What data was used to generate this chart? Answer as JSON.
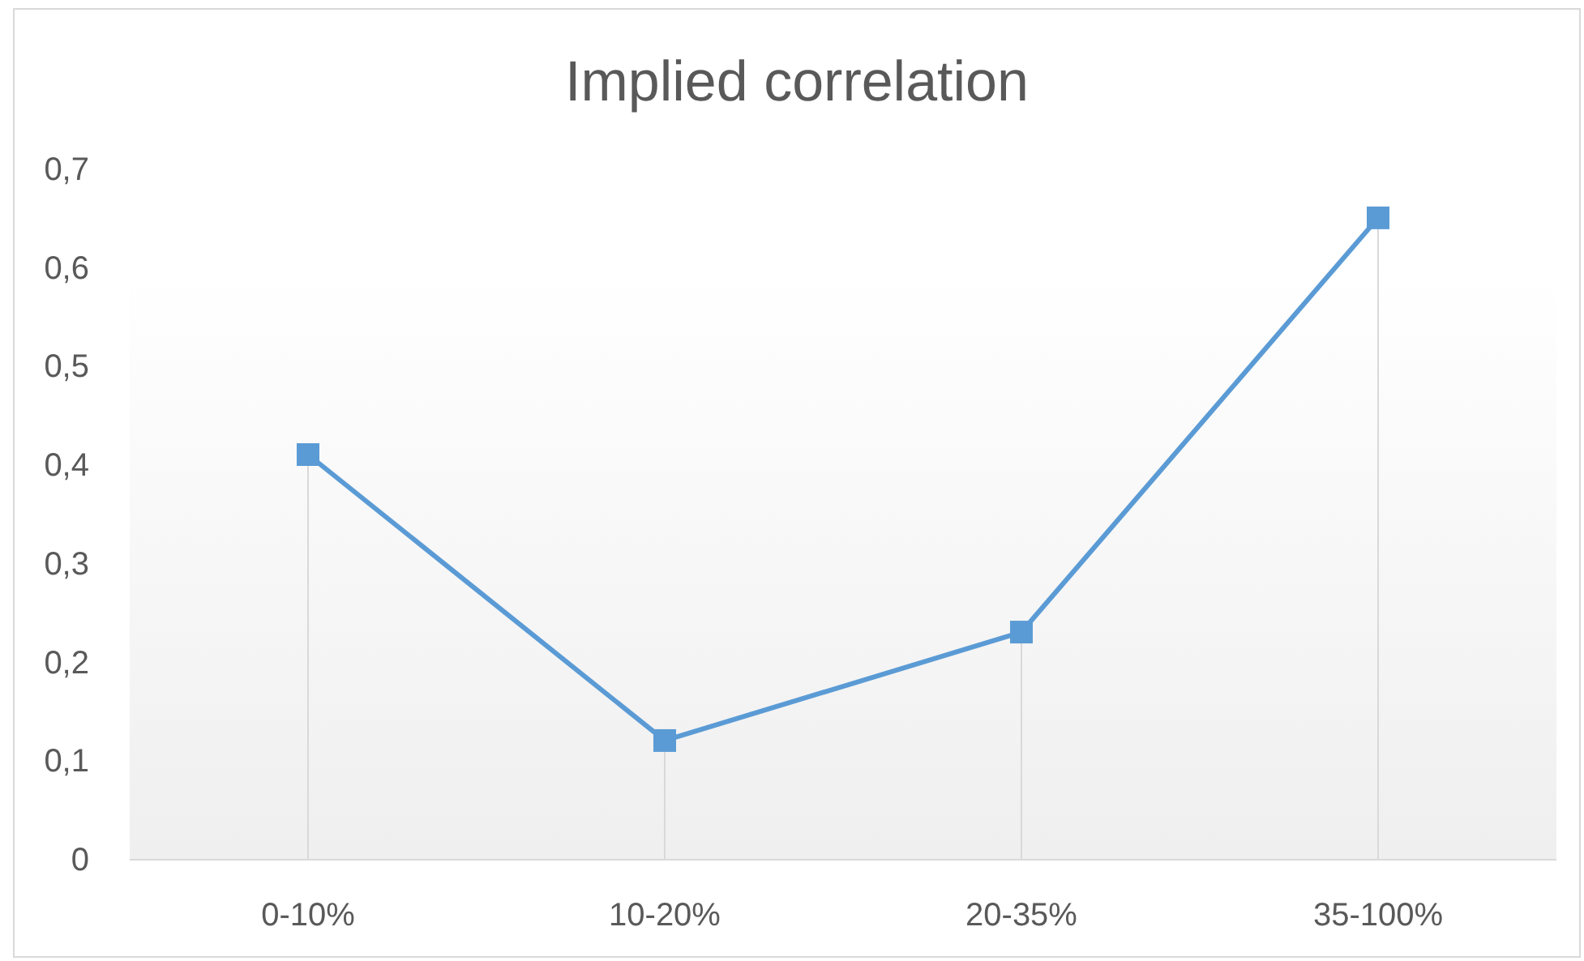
{
  "chart_data": {
    "type": "line",
    "title": "Implied correlation",
    "categories": [
      "0-10%",
      "10-20%",
      "20-35%",
      "35-100%"
    ],
    "series": [
      {
        "color": "#5b9bd5",
        "values": [
          0.41,
          0.12,
          0.23,
          0.65
        ]
      },
      {
        "type": "lollipop",
        "color": "#5b9bd5",
        "marker": "square",
        "values": [
          0.41,
          0.12,
          0.23,
          0.65
        ]
      }
    ],
    "ylim": [
      0,
      0.7
    ],
    "yticks": [
      0,
      {
        "value": 0.1,
        "label": "0,1"
      },
      {
        "value": 0.2,
        "label": "0,2"
      },
      {
        "value": 0.3,
        "label": "0,3"
      },
      {
        "value": 0.4,
        "label": "0,4"
      },
      {
        "value": 0.5,
        "label": "0,5"
      },
      {
        "value": 0.6,
        "label": "0,6"
      },
      {
        "value": 0.7,
        "label": "0,7"
      }
    ],
    "line_style": "solid"
  }
}
